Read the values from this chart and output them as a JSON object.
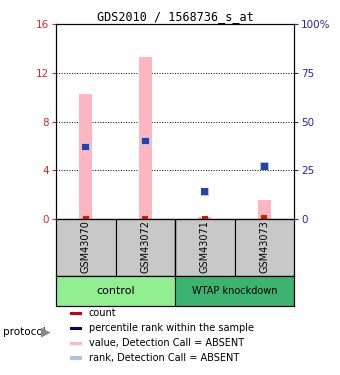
{
  "title": "GDS2010 / 1568736_s_at",
  "samples": [
    "GSM43070",
    "GSM43072",
    "GSM43071",
    "GSM43073"
  ],
  "group_labels": [
    "control",
    "WTAP knockdown"
  ],
  "group_colors": [
    "#90EE90",
    "#3CB371"
  ],
  "bar_pink_values": [
    10.3,
    13.3,
    0.15,
    1.55
  ],
  "bar_red_values": [
    0.25,
    0.25,
    0.25,
    0.35
  ],
  "rank_blue_values": [
    37.0,
    40.0,
    14.0,
    27.0
  ],
  "ylim_left": [
    0,
    16
  ],
  "ylim_right": [
    0,
    100
  ],
  "yticks_left": [
    0,
    4,
    8,
    12,
    16
  ],
  "yticks_right": [
    0,
    25,
    50,
    75,
    100
  ],
  "ytick_right_labels": [
    "0",
    "25",
    "50",
    "75",
    "100%"
  ],
  "ylabel_left_color": "#EE2222",
  "ylabel_right_color": "#2222BB",
  "bg_color": "#FFFFFF",
  "plot_bg": "#FFFFFF",
  "legend_items": [
    {
      "label": "count",
      "color": "#CC0000"
    },
    {
      "label": "percentile rank within the sample",
      "color": "#00008B"
    },
    {
      "label": "value, Detection Call = ABSENT",
      "color": "#FFB6C1"
    },
    {
      "label": "rank, Detection Call = ABSENT",
      "color": "#B0C4DE"
    }
  ]
}
